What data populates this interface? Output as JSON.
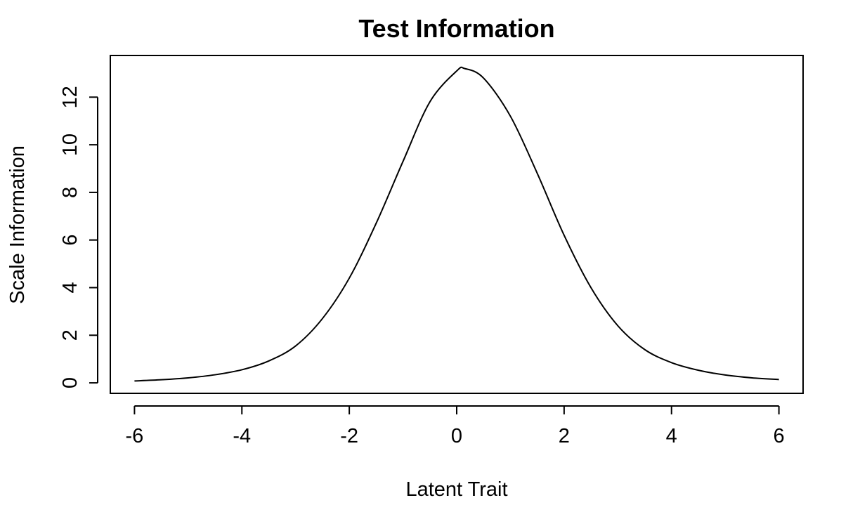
{
  "chart_data": {
    "type": "line",
    "title": "Test Information",
    "xlabel": "Latent Trait",
    "ylabel": "Scale Information",
    "xlim": [
      -6.45,
      6.45
    ],
    "ylim": [
      -0.44,
      13.75
    ],
    "xticks": [
      -6,
      -4,
      -2,
      0,
      2,
      4,
      6
    ],
    "yticks": [
      0,
      2,
      4,
      6,
      8,
      10,
      12
    ],
    "grid": false,
    "legend": "none",
    "color": "#000000",
    "series": [
      {
        "x": [
          -6.0,
          -5.5,
          -5.0,
          -4.5,
          -4.0,
          -3.5,
          -3.0,
          -2.5,
          -2.0,
          -1.5,
          -1.0,
          -0.5,
          0.0,
          0.15,
          0.5,
          1.0,
          1.5,
          2.0,
          2.5,
          3.0,
          3.5,
          4.0,
          4.5,
          5.0,
          5.5,
          6.0
        ],
        "y": [
          0.08,
          0.13,
          0.21,
          0.34,
          0.55,
          0.92,
          1.55,
          2.7,
          4.4,
          6.7,
          9.3,
          11.8,
          13.1,
          13.2,
          12.8,
          11.2,
          8.8,
          6.2,
          4.0,
          2.4,
          1.4,
          0.85,
          0.53,
          0.33,
          0.21,
          0.14
        ]
      }
    ]
  }
}
